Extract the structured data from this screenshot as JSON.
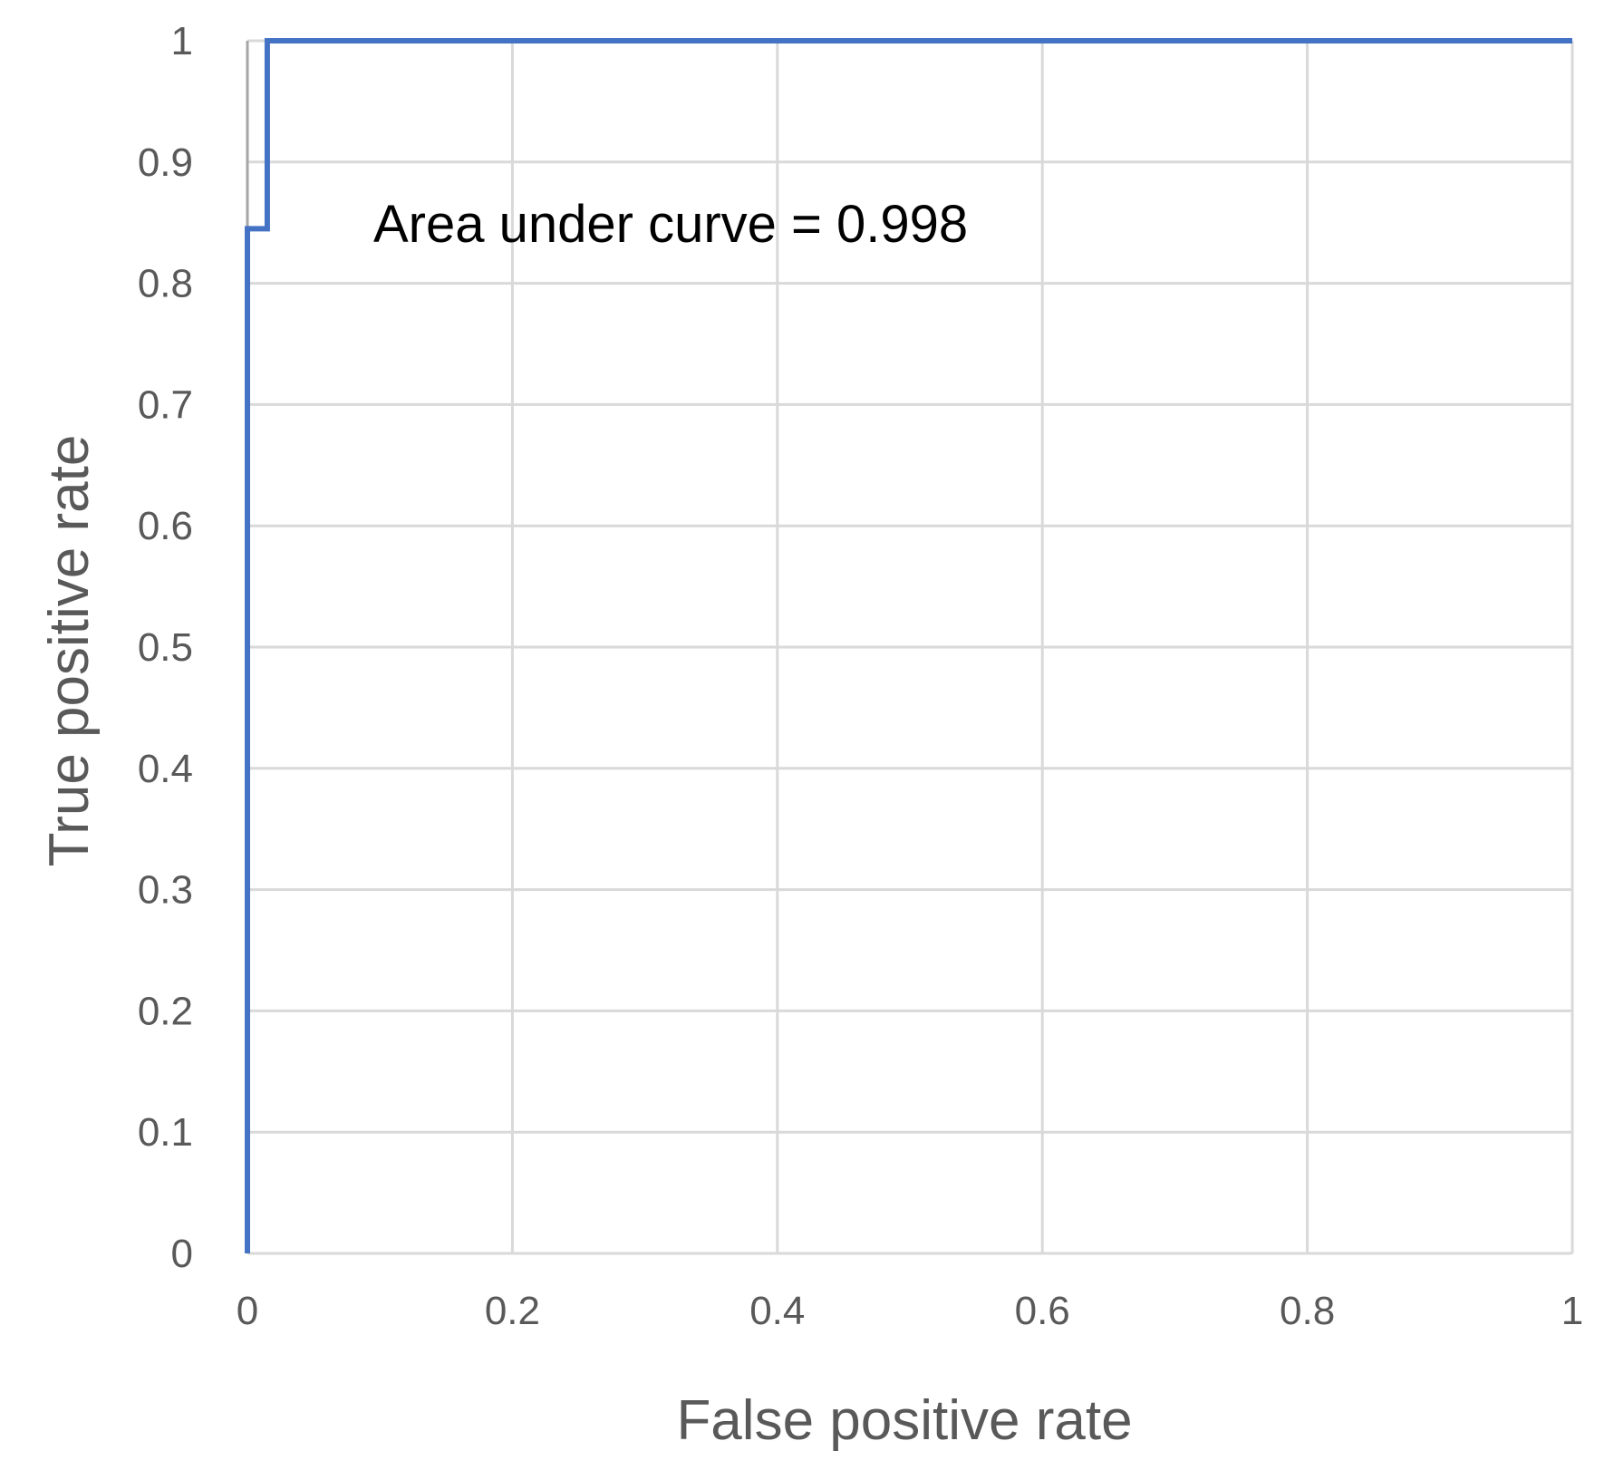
{
  "chart_data": {
    "type": "line",
    "xlabel": "False positive rate",
    "ylabel": "True positive rate",
    "xlim": [
      0,
      1
    ],
    "ylim": [
      0,
      1
    ],
    "x_ticks": [
      "0",
      "0.2",
      "0.4",
      "0.6",
      "0.8",
      "1"
    ],
    "y_ticks": [
      "0",
      "0.1",
      "0.2",
      "0.3",
      "0.4",
      "0.5",
      "0.6",
      "0.7",
      "0.8",
      "0.9",
      "1"
    ],
    "grid": true,
    "legend": "none",
    "annotations": [
      {
        "text": "Area under curve = 0.998"
      }
    ],
    "series": [
      {
        "color": "#4472c4",
        "x": [
          0,
          0,
          0.015,
          0.015,
          1
        ],
        "y": [
          0,
          0.845,
          0.845,
          1,
          1
        ]
      }
    ],
    "reference_line": {
      "color": "#a6a6a6",
      "x": [
        0,
        0
      ],
      "y": [
        0.845,
        1
      ]
    }
  }
}
